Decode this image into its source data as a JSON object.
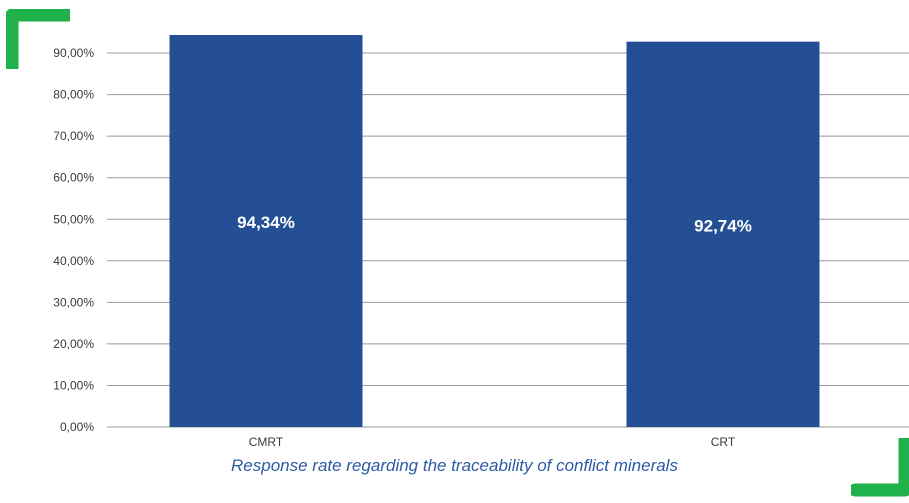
{
  "colors": {
    "bar": "#254f94",
    "corner_accent": "#1fb24a",
    "caption": "#2c5aa6",
    "gridline": "#9a9a9a",
    "axis_text": "#3a3a3a",
    "data_label": "#ffffff"
  },
  "chart_data": {
    "type": "bar",
    "title": "",
    "xlabel": "",
    "ylabel": "",
    "categories": [
      "CMRT",
      "CRT"
    ],
    "values": [
      94.34,
      92.74
    ],
    "data_labels": [
      "94,34%",
      "92,74%"
    ],
    "ylim": [
      0,
      90
    ],
    "yticks": [
      0,
      10,
      20,
      30,
      40,
      50,
      60,
      70,
      80,
      90
    ],
    "ytick_labels": [
      "0,00%",
      "10,00%",
      "20,00%",
      "30,00%",
      "40,00%",
      "50,00%",
      "60,00%",
      "70,00%",
      "80,00%",
      "90,00%"
    ],
    "grid": true,
    "legend": "none"
  },
  "caption": "Response rate regarding the traceability of conflict minerals",
  "decorations": {
    "top_left_corner_icon": "corner-bracket-top-left",
    "bottom_right_corner_icon": "corner-bracket-bottom-right"
  }
}
